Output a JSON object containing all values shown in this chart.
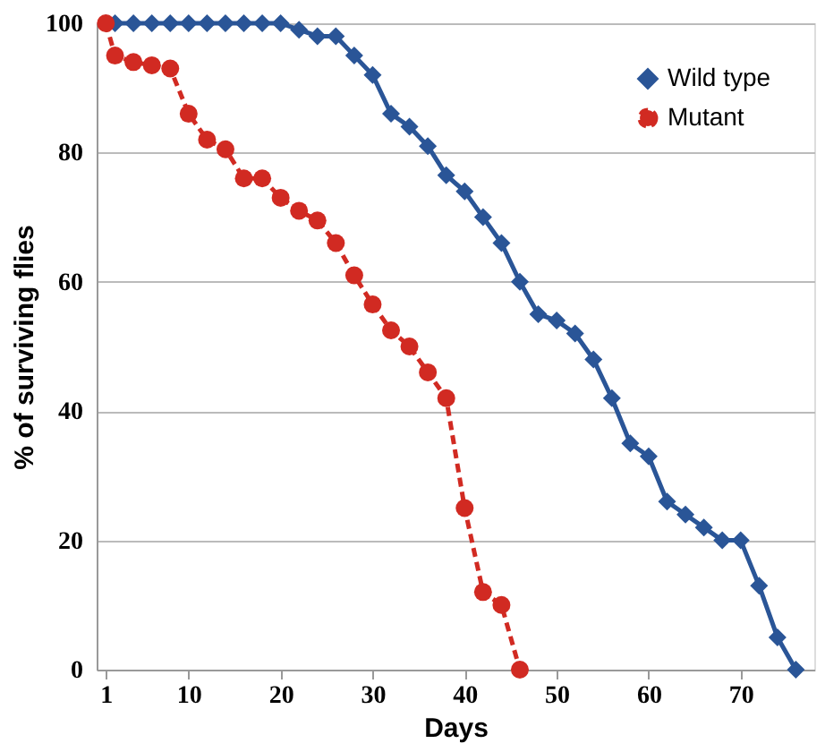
{
  "chart_data": {
    "type": "line",
    "xlabel": "Days",
    "ylabel": "% of surviving flies",
    "series": [
      {
        "name": "Wild type",
        "color": "#2a5597",
        "marker": "diamond",
        "line_style": "solid",
        "x": [
          1,
          2,
          4,
          6,
          8,
          10,
          12,
          14,
          16,
          18,
          20,
          22,
          24,
          26,
          28,
          30,
          32,
          34,
          36,
          38,
          40,
          42,
          44,
          46,
          48,
          50,
          52,
          54,
          56,
          58,
          60,
          62,
          64,
          66,
          68,
          70,
          72,
          74,
          76
        ],
        "values": [
          100,
          100,
          100,
          100,
          100,
          100,
          100,
          100,
          100,
          100,
          100,
          99,
          98,
          98,
          95,
          92,
          86,
          84,
          81,
          76.5,
          74,
          70,
          66,
          60,
          55,
          54,
          52,
          48,
          42,
          35,
          33,
          26,
          24,
          22,
          20,
          20,
          13,
          5,
          0
        ]
      },
      {
        "name": "Mutant",
        "color": "#d12a22",
        "marker": "circle",
        "line_style": "dashed",
        "x": [
          1,
          2,
          4,
          6,
          8,
          10,
          12,
          14,
          16,
          18,
          20,
          22,
          24,
          26,
          28,
          30,
          32,
          34,
          36,
          38,
          40,
          42,
          44,
          46
        ],
        "values": [
          100,
          95,
          94,
          93.5,
          93,
          86,
          82,
          80.5,
          76,
          76,
          73,
          71,
          69.5,
          66,
          61,
          56.5,
          52.5,
          50,
          46,
          42,
          25,
          12,
          10,
          0
        ]
      }
    ],
    "xlim": [
      0,
      78
    ],
    "xticks": [
      1,
      10,
      20,
      30,
      40,
      50,
      60,
      70
    ],
    "ylim": [
      0,
      100
    ],
    "yticks": [
      0,
      20,
      40,
      60,
      80,
      100
    ],
    "grid": "y",
    "legend": "top right"
  }
}
